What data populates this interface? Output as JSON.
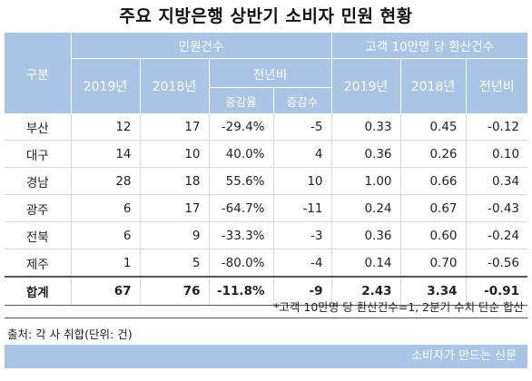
{
  "title": "주요 지방은행 상반기 소비자 민원 현황",
  "headers": {
    "category": "구분",
    "complaints": "민원건수",
    "per_customer": "고객 10만명 당 환산건수",
    "y2019": "2019년",
    "y2018": "2018년",
    "yoy": "전년비",
    "rate": "증감율",
    "diff": "증감수",
    "y2019b": "2019년",
    "y2018b": "2018년",
    "yoyb": "전년비"
  },
  "rows": [
    [
      "부산",
      "12",
      "17",
      "-29.4%",
      "-5",
      "0.33",
      "0.45",
      "-0.12"
    ],
    [
      "대구",
      "14",
      "10",
      "40.0%",
      "4",
      "0.36",
      "0.26",
      "0.10"
    ],
    [
      "경남",
      "28",
      "18",
      "55.6%",
      "10",
      "1.00",
      "0.66",
      "0.34"
    ],
    [
      "광주",
      "6",
      "17",
      "-64.7%",
      "-11",
      "0.24",
      "0.67",
      "-0.43"
    ],
    [
      "전북",
      "6",
      "9",
      "-33.3%",
      "-3",
      "0.36",
      "0.60",
      "-0.24"
    ],
    [
      "제주",
      "1",
      "5",
      "-80.0%",
      "-4",
      "0.14",
      "0.70",
      "-0.56"
    ]
  ],
  "total": [
    "합계",
    "67",
    "76",
    "-11.8%",
    "-9",
    "2.43",
    "3.34",
    "-0.91"
  ],
  "note": "*고객 10만명 당 환산건수=1, 2분기 수치 단순 합산",
  "source": "출처: 각 사 취합(단위: 건)",
  "brand": "소비자가 만드는 신문",
  "colors": {
    "header_bg": "#a9c4e4",
    "header_text": "#ffffff"
  }
}
